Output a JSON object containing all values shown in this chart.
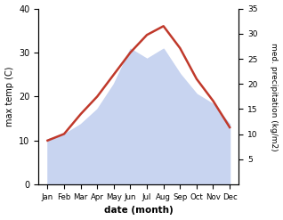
{
  "months": [
    "Jan",
    "Feb",
    "Mar",
    "Apr",
    "May",
    "Jun",
    "Jul",
    "Aug",
    "Sep",
    "Oct",
    "Nov",
    "Dec"
  ],
  "temp": [
    10,
    11.5,
    16,
    20,
    25,
    30,
    34,
    36,
    31,
    24,
    19,
    13
  ],
  "precip": [
    9,
    10,
    12,
    15,
    20,
    27,
    25,
    27,
    22,
    18,
    16,
    12
  ],
  "temp_color": "#c0392b",
  "precip_fill_color": "#c8d4f0",
  "background_color": "#ffffff",
  "ylabel_left": "max temp (C)",
  "ylabel_right": "med. precipitation (kg/m2)",
  "xlabel": "date (month)",
  "ylim_left": [
    0,
    40
  ],
  "ylim_right": [
    0,
    35
  ],
  "yticks_left": [
    0,
    10,
    20,
    30,
    40
  ],
  "yticks_right": [
    5,
    10,
    15,
    20,
    25,
    30,
    35
  ]
}
